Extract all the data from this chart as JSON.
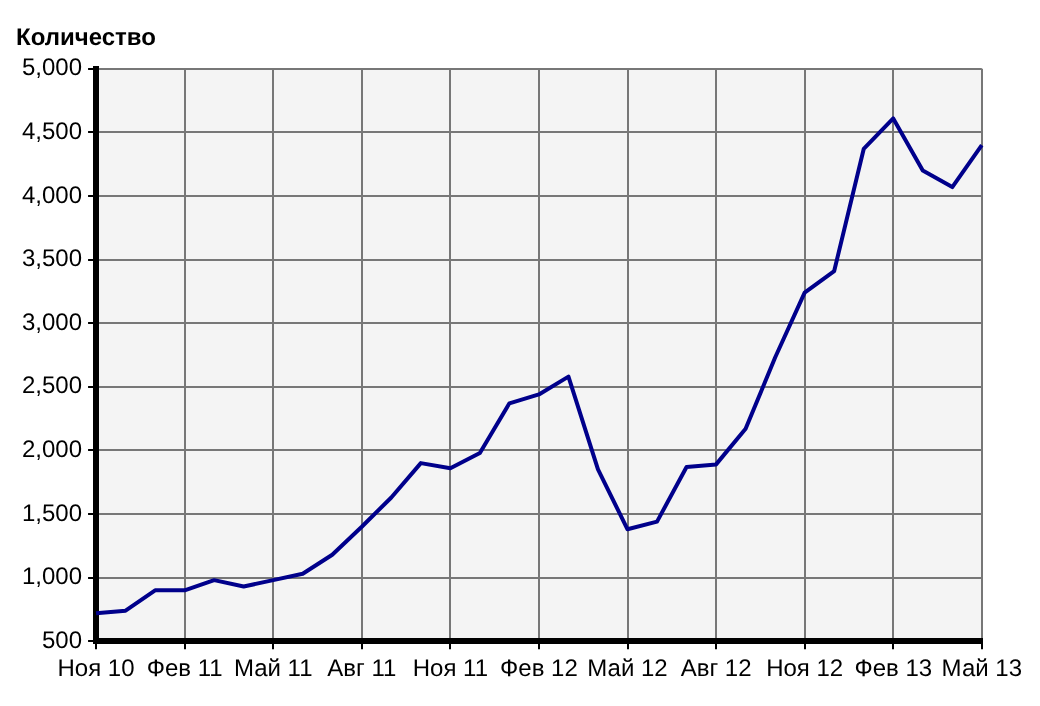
{
  "chart_data": {
    "type": "line",
    "ylabel": "Количество",
    "categories": [
      "Ноя 10",
      null,
      null,
      "Фев 11",
      null,
      null,
      "Май 11",
      null,
      null,
      "Авг 11",
      null,
      null,
      "Ноя 11",
      null,
      null,
      "Фев 12",
      null,
      null,
      "Май 12",
      null,
      null,
      "Авг 12",
      null,
      null,
      "Ноя 12",
      null,
      null,
      "Фев 13",
      null,
      null,
      "Май 13"
    ],
    "series": [
      {
        "color": "#00008b",
        "values": [
          720,
          740,
          900,
          900,
          980,
          930,
          980,
          1030,
          1180,
          1400,
          1630,
          1900,
          1860,
          1980,
          2370,
          2440,
          2580,
          1850,
          1380,
          1440,
          1870,
          1890,
          2170,
          2730,
          3240,
          3410,
          4370,
          4610,
          4200,
          4070,
          4400
        ]
      }
    ],
    "ylim": [
      500,
      5000
    ],
    "yticks": [
      {
        "value": 500,
        "label": "500"
      },
      {
        "value": 1000,
        "label": "1,000"
      },
      {
        "value": 1500,
        "label": "1,500"
      },
      {
        "value": 2000,
        "label": "2,000"
      },
      {
        "value": 2500,
        "label": "2,500"
      },
      {
        "value": 3000,
        "label": "3,000"
      },
      {
        "value": 3500,
        "label": "3,500"
      },
      {
        "value": 4000,
        "label": "4,000"
      },
      {
        "value": 4500,
        "label": "4,500"
      },
      {
        "value": 5000,
        "label": "5,000"
      }
    ],
    "grid": true,
    "marker": "none"
  }
}
